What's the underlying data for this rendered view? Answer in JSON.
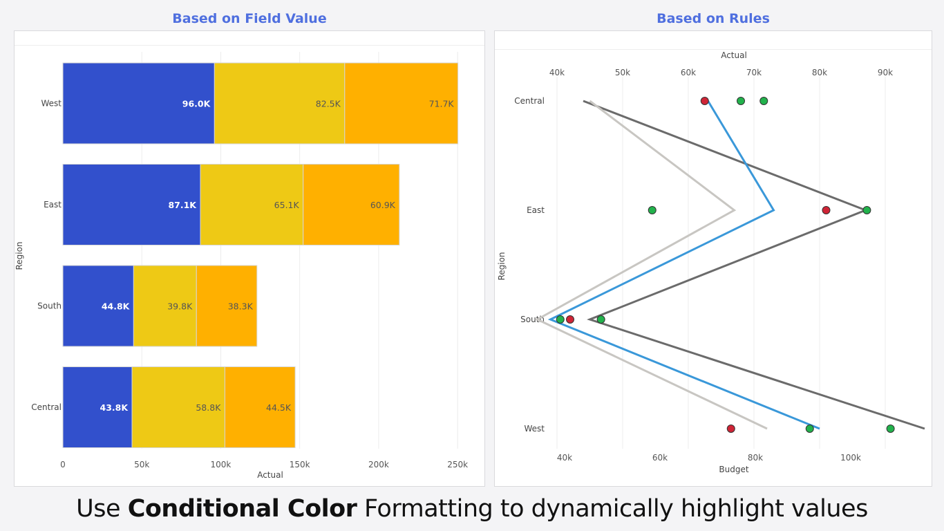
{
  "titles": {
    "left": "Based on Field Value",
    "right": "Based on Rules"
  },
  "caption": {
    "prefix": "Use ",
    "bold": "Conditional Color",
    "suffix": " Formatting to dynamically highlight values"
  },
  "colors": {
    "blue_segment": "#3250cc",
    "yellow_segment": "#eec915",
    "orange_segment": "#ffb000",
    "line_dark": "#6b6b6b",
    "line_light": "#c8c6c2",
    "line_blue": "#3a98d9",
    "dot_green": "#22b24c",
    "dot_red": "#cf2436"
  },
  "chart_data": [
    {
      "type": "bar",
      "orientation": "horizontal",
      "stacked": true,
      "categories": [
        "West",
        "East",
        "South",
        "Central"
      ],
      "series": [
        {
          "values": [
            96.0,
            87.1,
            44.8,
            43.8
          ],
          "labels": [
            "96.0K",
            "87.1K",
            "44.8K",
            "43.8K"
          ],
          "color": "#3250cc"
        },
        {
          "values": [
            82.5,
            65.1,
            39.8,
            58.8
          ],
          "labels": [
            "82.5K",
            "65.1K",
            "39.8K",
            "58.8K"
          ],
          "color": "#eec915"
        },
        {
          "values": [
            71.7,
            60.9,
            38.3,
            44.5
          ],
          "labels": [
            "71.7K",
            "60.9K",
            "38.3K",
            "44.5K"
          ],
          "color": "#ffb000"
        }
      ],
      "xlabel": "Actual",
      "ylabel": "Region",
      "xticks": [
        "0",
        "50k",
        "100k",
        "150k",
        "200k",
        "250k"
      ],
      "xlim": [
        0,
        260
      ],
      "grid": true
    },
    {
      "type": "line",
      "orientation": "categories on vertical axis",
      "categories": [
        "Central",
        "East",
        "South",
        "West"
      ],
      "ylabel": "Region",
      "top_axis": {
        "label": "Actual",
        "ticks": [
          "40k",
          "50k",
          "60k",
          "70k",
          "80k",
          "90k"
        ],
        "range": [
          38,
          98
        ]
      },
      "bottom_axis": {
        "label": "Budget",
        "ticks": [
          "40k",
          "60k",
          "80k",
          "100k"
        ],
        "range": [
          36,
          116
        ]
      },
      "lines": [
        {
          "color": "#6b6b6b",
          "values": [
            44,
            87,
            45,
            96
          ]
        },
        {
          "color": "#c8c6c2",
          "values": [
            45,
            67,
            37,
            72
          ]
        },
        {
          "color": "#3a98d9",
          "values": [
            63,
            73,
            39,
            80
          ]
        }
      ],
      "points": [
        {
          "category": "Central",
          "value": 62.5,
          "color": "red"
        },
        {
          "category": "Central",
          "value": 68,
          "color": "green"
        },
        {
          "category": "Central",
          "value": 71.5,
          "color": "green"
        },
        {
          "category": "East",
          "value": 54.5,
          "color": "green"
        },
        {
          "category": "East",
          "value": 81,
          "color": "red"
        },
        {
          "category": "East",
          "value": 87.2,
          "color": "green"
        },
        {
          "category": "South",
          "value": 40.5,
          "color": "green"
        },
        {
          "category": "South",
          "value": 42,
          "color": "red"
        },
        {
          "category": "South",
          "value": 46.7,
          "color": "green"
        },
        {
          "category": "West",
          "value": 66.5,
          "color": "red"
        },
        {
          "category": "West",
          "value": 78.5,
          "color": "green"
        },
        {
          "category": "West",
          "value": 90.8,
          "color": "green"
        }
      ],
      "grid": true
    }
  ]
}
